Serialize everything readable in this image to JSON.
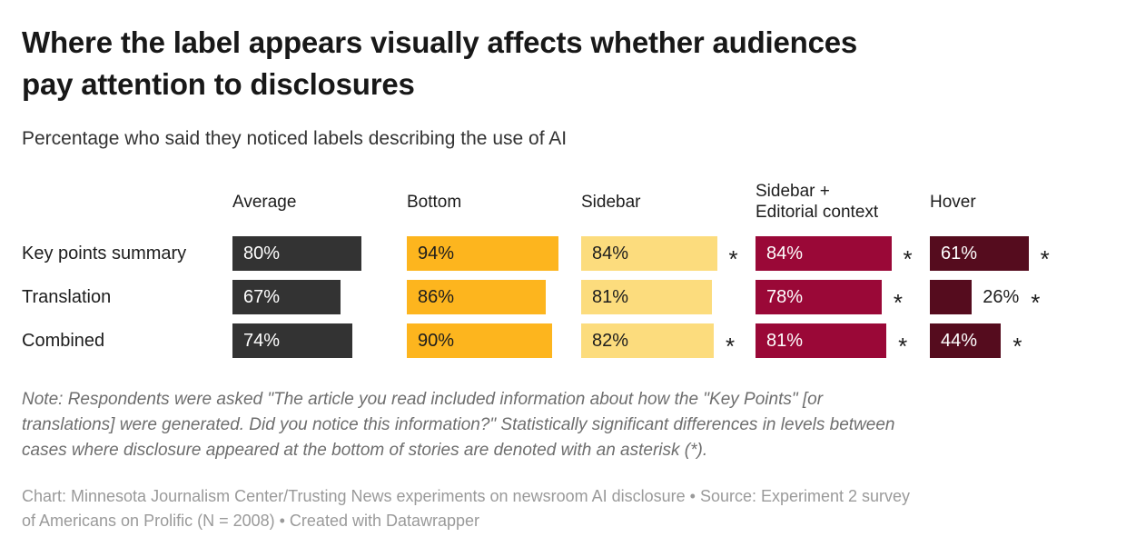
{
  "header": {
    "title_lines": [
      "Where the label appears visually affects whether audiences",
      "pay attention to disclosures"
    ],
    "subtitle": "Percentage who said they noticed labels describing the use of AI"
  },
  "chart_data": {
    "type": "bar",
    "orientation": "horizontal",
    "title": "Where the label appears visually affects whether audiences pay attention to disclosures",
    "subtitle": "Percentage who said they noticed labels describing the use of AI",
    "unit": "%",
    "xlim": [
      0,
      100
    ],
    "grid": false,
    "legend_position": "column-headers",
    "significance_marker": "*",
    "categories": [
      "Key points summary",
      "Translation",
      "Combined"
    ],
    "series": [
      {
        "name": "Average",
        "name_lines": [
          "Average"
        ],
        "color": "#333333",
        "label_color": "#FFFFFF",
        "values": [
          80,
          67,
          74
        ],
        "significant": [
          false,
          false,
          false
        ]
      },
      {
        "name": "Bottom",
        "name_lines": [
          "Bottom"
        ],
        "color": "#FDB51E",
        "label_color": "#1D1D1D",
        "values": [
          94,
          86,
          90
        ],
        "significant": [
          false,
          false,
          false
        ]
      },
      {
        "name": "Sidebar",
        "name_lines": [
          "Sidebar"
        ],
        "color": "#FCDC7D",
        "label_color": "#1D1D1D",
        "values": [
          84,
          81,
          82
        ],
        "significant": [
          true,
          false,
          true
        ]
      },
      {
        "name": "Sidebar + Editorial context",
        "name_lines": [
          "Sidebar +",
          "Editorial context"
        ],
        "color": "#9A0837",
        "label_color": "#FFFFFF",
        "values": [
          84,
          78,
          81
        ],
        "significant": [
          true,
          true,
          true
        ]
      },
      {
        "name": "Hover",
        "name_lines": [
          "Hover"
        ],
        "color": "#550C1E",
        "label_color": "#FFFFFF",
        "values": [
          61,
          26,
          44
        ],
        "significant": [
          true,
          true,
          true
        ]
      }
    ]
  },
  "footer": {
    "note_lines": [
      "Note: Respondents were asked \"The article you read included information about how the \"Key Points\" [or",
      "translations] were generated. Did you notice this information?\" Statistically significant differences in levels between",
      "cases where disclosure appeared at the bottom of stories are denoted with an asterisk (*)."
    ],
    "byline_lines": [
      "Chart: Minnesota Journalism Center/Trusting News experiments on newsroom AI disclosure • Source: Experiment 2 survey",
      "of Americans on Prolific (N = 2008) • Created with Datawrapper"
    ]
  }
}
